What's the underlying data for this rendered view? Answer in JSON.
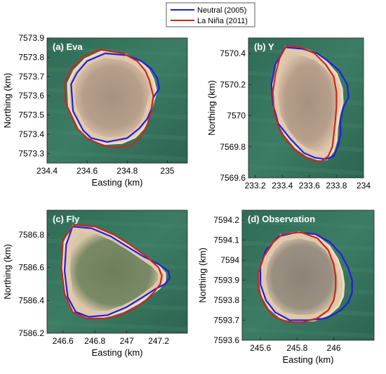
{
  "legend": {
    "entries": [
      {
        "label": "Neutral (2005)",
        "color": "#1f1fe0"
      },
      {
        "label": "La Niña (2011)",
        "color": "#c62a1a"
      }
    ]
  },
  "chart_data": [
    {
      "type": "line",
      "title": "(a) Eva",
      "xlabel": "Easting (km)",
      "ylabel": "Northing (km)",
      "xlim": [
        234.4,
        235.1
      ],
      "ylim": [
        7573.25,
        7573.9
      ],
      "xticks": [
        "234.4",
        "234.6",
        "234.8",
        "235"
      ],
      "yticks": [
        "7573.3",
        "7573.4",
        "7573.5",
        "7573.6",
        "7573.7",
        "7573.8",
        "7573.9"
      ],
      "series": [
        {
          "name": "Neutral (2005)",
          "x": [
            234.69,
            234.8,
            234.87,
            234.92,
            234.95,
            234.96,
            234.93,
            234.92,
            234.9,
            234.86,
            234.8,
            234.7,
            234.62,
            234.58,
            234.56,
            234.53,
            234.52,
            234.55,
            234.6,
            234.69
          ],
          "y": [
            7573.82,
            7573.81,
            7573.78,
            7573.74,
            7573.69,
            7573.64,
            7573.59,
            7573.53,
            7573.48,
            7573.43,
            7573.38,
            7573.36,
            7573.38,
            7573.42,
            7573.46,
            7573.52,
            7573.66,
            7573.72,
            7573.78,
            7573.82
          ]
        },
        {
          "name": "La Niña (2011)",
          "x": [
            234.66,
            234.78,
            234.85,
            234.89,
            234.91,
            234.93,
            234.92,
            234.9,
            234.87,
            234.82,
            234.75,
            234.68,
            234.6,
            234.55,
            234.52,
            234.49,
            234.49,
            234.52,
            234.58,
            234.66
          ],
          "y": [
            7573.84,
            7573.82,
            7573.78,
            7573.73,
            7573.68,
            7573.6,
            7573.52,
            7573.45,
            7573.39,
            7573.34,
            7573.33,
            7573.34,
            7573.38,
            7573.43,
            7573.5,
            7573.57,
            7573.67,
            7573.74,
            7573.8,
            7573.84
          ]
        }
      ]
    },
    {
      "type": "line",
      "title": "(b) Y",
      "xlabel": "",
      "ylabel": "Northing (km)",
      "xlim": [
        233.15,
        234.0
      ],
      "ylim": [
        7569.6,
        7570.5
      ],
      "xticks": [
        "233.2",
        "233.4",
        "233.6",
        "233.8",
        "234"
      ],
      "yticks": [
        "7569.6",
        "7569.8",
        "7570",
        "7570.2",
        "7570.4"
      ],
      "series": [
        {
          "name": "Neutral (2005)",
          "x": [
            233.42,
            233.55,
            233.66,
            233.74,
            233.82,
            233.88,
            233.89,
            233.85,
            233.83,
            233.83,
            233.81,
            233.78,
            233.72,
            233.64,
            233.56,
            233.46,
            233.37,
            233.33,
            233.32,
            233.35,
            233.42
          ],
          "y": [
            7570.44,
            7570.43,
            7570.4,
            7570.35,
            7570.29,
            7570.2,
            7570.12,
            7570.05,
            7569.97,
            7569.88,
            7569.8,
            7569.74,
            7569.72,
            7569.73,
            7569.76,
            7569.85,
            7569.95,
            7570.08,
            7570.2,
            7570.33,
            7570.44
          ]
        },
        {
          "name": "La Niña (2011)",
          "x": [
            233.43,
            233.54,
            233.64,
            233.72,
            233.78,
            233.8,
            233.8,
            233.79,
            233.78,
            233.77,
            233.74,
            233.68,
            233.6,
            233.52,
            233.44,
            233.38,
            233.34,
            233.33,
            233.35,
            233.38,
            233.43
          ],
          "y": [
            7570.45,
            7570.44,
            7570.4,
            7570.33,
            7570.25,
            7570.15,
            7570.05,
            7569.96,
            7569.88,
            7569.8,
            7569.74,
            7569.7,
            7569.72,
            7569.76,
            7569.83,
            7569.91,
            7570.02,
            7570.15,
            7570.27,
            7570.37,
            7570.45
          ]
        }
      ]
    },
    {
      "type": "line",
      "title": "(c) Fly",
      "xlabel": "Easting (km)",
      "ylabel": "Northing (km)",
      "xlim": [
        246.5,
        247.38
      ],
      "ylim": [
        7586.2,
        7586.95
      ],
      "xticks": [
        "246.6",
        "246.8",
        "247",
        "247.2"
      ],
      "yticks": [
        "7586.2",
        "7586.4",
        "7586.6",
        "7586.8"
      ],
      "series": [
        {
          "name": "Neutral (2005)",
          "x": [
            246.66,
            246.78,
            246.9,
            247.0,
            247.1,
            247.2,
            247.26,
            247.27,
            247.24,
            247.18,
            247.1,
            247.0,
            246.88,
            246.76,
            246.68,
            246.63,
            246.61,
            246.62,
            246.66
          ],
          "y": [
            7586.85,
            7586.84,
            7586.79,
            7586.73,
            7586.67,
            7586.62,
            7586.58,
            7586.54,
            7586.5,
            7586.47,
            7586.42,
            7586.36,
            7586.31,
            7586.3,
            7586.33,
            7586.42,
            7586.58,
            7586.74,
            7586.85
          ]
        },
        {
          "name": "La Niña (2011)",
          "x": [
            246.67,
            246.8,
            246.92,
            247.02,
            247.12,
            247.2,
            247.22,
            247.21,
            247.17,
            247.12,
            247.05,
            246.96,
            246.86,
            246.75,
            246.66,
            246.61,
            246.59,
            246.6,
            246.67
          ],
          "y": [
            7586.86,
            7586.85,
            7586.8,
            7586.74,
            7586.67,
            7586.6,
            7586.55,
            7586.5,
            7586.45,
            7586.4,
            7586.35,
            7586.31,
            7586.29,
            7586.29,
            7586.33,
            7586.44,
            7586.6,
            7586.77,
            7586.86
          ]
        }
      ]
    },
    {
      "type": "line",
      "title": "(d) Observation",
      "xlabel": "Easting (km)",
      "ylabel": "Northing (km)",
      "xlim": [
        245.5,
        246.22
      ],
      "ylim": [
        7593.6,
        7594.25
      ],
      "xticks": [
        "245.6",
        "245.8",
        "246"
      ],
      "yticks": [
        "7593.6",
        "7593.7",
        "7593.8",
        "7593.9",
        "7594",
        "7594.1",
        "7594.2"
      ],
      "series": [
        {
          "name": "Neutral (2005)",
          "x": [
            245.7,
            245.8,
            245.9,
            245.98,
            246.04,
            246.08,
            246.1,
            246.1,
            246.08,
            246.04,
            245.96,
            245.86,
            245.76,
            245.68,
            245.63,
            245.6,
            245.6,
            245.63,
            245.7
          ],
          "y": [
            7594.12,
            7594.14,
            7594.13,
            7594.09,
            7594.03,
            7593.96,
            7593.9,
            7593.84,
            7593.79,
            7593.75,
            7593.71,
            7593.7,
            7593.7,
            7593.74,
            7593.8,
            7593.88,
            7593.97,
            7594.05,
            7594.12
          ]
        },
        {
          "name": "La Niña (2011)",
          "x": [
            245.72,
            245.82,
            245.91,
            245.97,
            246.0,
            246.01,
            246.01,
            246.0,
            245.97,
            245.91,
            245.83,
            245.75,
            245.67,
            245.62,
            245.59,
            245.59,
            245.62,
            245.67,
            245.72
          ],
          "y": [
            7594.13,
            7594.14,
            7594.11,
            7594.05,
            7593.98,
            7593.92,
            7593.86,
            7593.8,
            7593.75,
            7593.71,
            7593.69,
            7593.69,
            7593.72,
            7593.78,
            7593.85,
            7593.94,
            7594.02,
            7594.09,
            7594.13
          ]
        }
      ]
    }
  ]
}
